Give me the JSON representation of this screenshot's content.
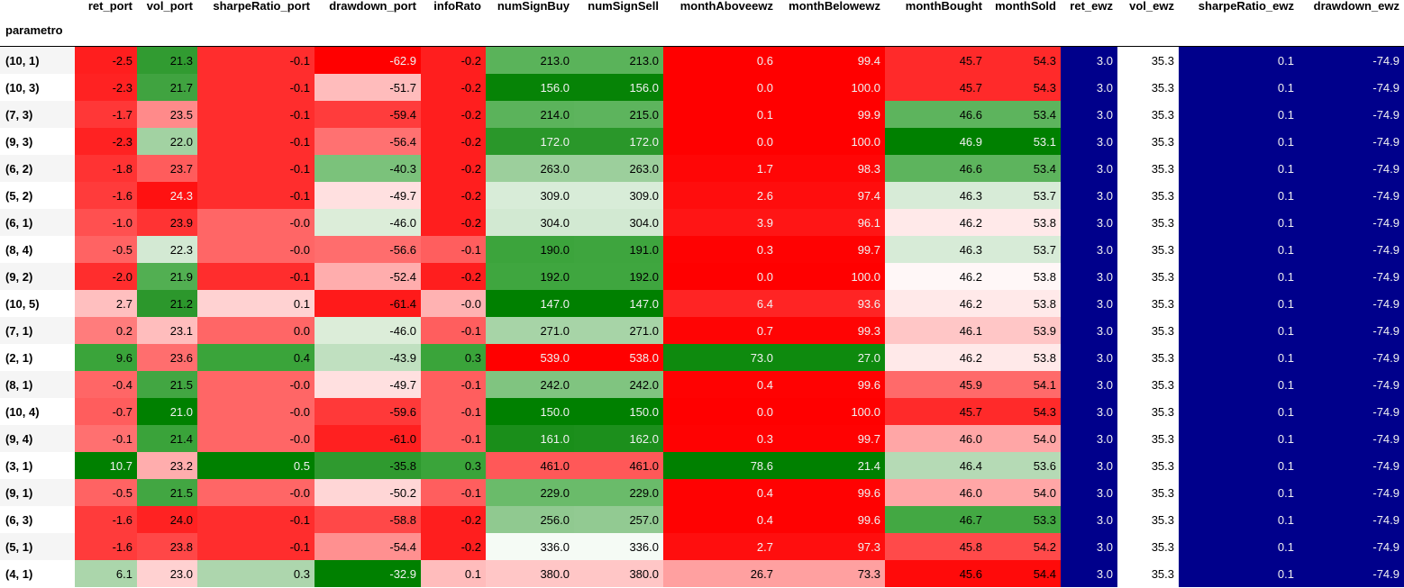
{
  "index_name": "parametro",
  "columns": [
    "ret_port",
    "vol_port",
    "sharpeRatio_port",
    "drawdown_port",
    "infoRato",
    "numSignBuy",
    "numSignSell",
    "monthAboveewz",
    "monthBelowewz",
    "monthBought",
    "monthSold",
    "ret_ewz",
    "vol_ewz",
    "sharpeRatio_ewz",
    "drawdown_ewz"
  ],
  "rows": [
    {
      "index": "(10, 1)",
      "values": [
        "-2.5",
        "21.3",
        "-0.1",
        "-62.9",
        "-0.2",
        "213.0",
        "213.0",
        "0.6",
        "99.4",
        "45.7",
        "54.3",
        "3.0",
        "35.3",
        "0.1",
        "-74.9"
      ],
      "bg": [
        "#ff1e1e",
        "#319b31",
        "#ff2d2d",
        "#ff0000",
        "#ff1e1e",
        "#5ab35a",
        "#5ab35a",
        "#ff0000",
        "#ff0000",
        "#ff2a2a",
        "#ff2a2a",
        "#00008b",
        "#ffffff",
        "#00008b",
        "#00008b"
      ],
      "fg": [
        "#000000",
        "#000000",
        "#000000",
        "#f1f1f1",
        "#000000",
        "#000000",
        "#000000",
        "#f1f1f1",
        "#f1f1f1",
        "#000000",
        "#000000",
        "#f1f1f1",
        "#000000",
        "#f1f1f1",
        "#f1f1f1"
      ]
    },
    {
      "index": "(10, 3)",
      "values": [
        "-2.3",
        "21.7",
        "-0.1",
        "-51.7",
        "-0.2",
        "156.0",
        "156.0",
        "0.0",
        "100.0",
        "45.7",
        "54.3",
        "3.0",
        "35.3",
        "0.1",
        "-74.9"
      ],
      "bg": [
        "#ff2222",
        "#40a340",
        "#ff2d2d",
        "#ffbcbc",
        "#ff1e1e",
        "#068306",
        "#068306",
        "#ff0000",
        "#ff0000",
        "#ff2a2a",
        "#ff2a2a",
        "#00008b",
        "#ffffff",
        "#00008b",
        "#00008b"
      ],
      "fg": [
        "#000000",
        "#000000",
        "#000000",
        "#000000",
        "#000000",
        "#f1f1f1",
        "#f1f1f1",
        "#f1f1f1",
        "#f1f1f1",
        "#000000",
        "#000000",
        "#f1f1f1",
        "#000000",
        "#f1f1f1",
        "#f1f1f1"
      ]
    },
    {
      "index": "(7, 3)",
      "values": [
        "-1.7",
        "23.5",
        "-0.1",
        "-59.4",
        "-0.2",
        "214.0",
        "215.0",
        "0.1",
        "99.9",
        "46.6",
        "53.4",
        "3.0",
        "35.3",
        "0.1",
        "-74.9"
      ],
      "bg": [
        "#ff3737",
        "#ff8a8a",
        "#ff2d2d",
        "#ff3c3c",
        "#ff1e1e",
        "#5bb35b",
        "#5db45d",
        "#ff0000",
        "#ff0000",
        "#5db45d",
        "#5db45d",
        "#00008b",
        "#ffffff",
        "#00008b",
        "#00008b"
      ],
      "fg": [
        "#000000",
        "#000000",
        "#000000",
        "#000000",
        "#000000",
        "#000000",
        "#000000",
        "#f1f1f1",
        "#f1f1f1",
        "#000000",
        "#000000",
        "#f1f1f1",
        "#000000",
        "#f1f1f1",
        "#f1f1f1"
      ]
    },
    {
      "index": "(9, 3)",
      "values": [
        "-2.3",
        "22.0",
        "-0.1",
        "-56.4",
        "-0.2",
        "172.0",
        "172.0",
        "0.0",
        "100.0",
        "46.9",
        "53.1",
        "3.0",
        "35.3",
        "0.1",
        "-74.9"
      ],
      "bg": [
        "#ff2222",
        "#a2d2a2",
        "#ff2d2d",
        "#ff7171",
        "#ff1e1e",
        "#2a972a",
        "#2a972a",
        "#ff0000",
        "#ff0000",
        "#008000",
        "#008000",
        "#00008b",
        "#ffffff",
        "#00008b",
        "#00008b"
      ],
      "fg": [
        "#000000",
        "#000000",
        "#000000",
        "#000000",
        "#000000",
        "#f1f1f1",
        "#f1f1f1",
        "#f1f1f1",
        "#f1f1f1",
        "#f1f1f1",
        "#f1f1f1",
        "#f1f1f1",
        "#000000",
        "#f1f1f1",
        "#f1f1f1"
      ]
    },
    {
      "index": "(6, 2)",
      "values": [
        "-1.8",
        "23.7",
        "-0.1",
        "-40.3",
        "-0.2",
        "263.0",
        "263.0",
        "1.7",
        "98.3",
        "46.6",
        "53.4",
        "3.0",
        "35.3",
        "0.1",
        "-74.9"
      ],
      "bg": [
        "#ff3333",
        "#ff5c5c",
        "#ff2d2d",
        "#7bc27b",
        "#ff1e1e",
        "#9ccf9c",
        "#9ccf9c",
        "#ff0606",
        "#ff0606",
        "#5db45d",
        "#5db45d",
        "#00008b",
        "#ffffff",
        "#00008b",
        "#00008b"
      ],
      "fg": [
        "#000000",
        "#000000",
        "#000000",
        "#000000",
        "#000000",
        "#000000",
        "#000000",
        "#f1f1f1",
        "#f1f1f1",
        "#000000",
        "#000000",
        "#f1f1f1",
        "#000000",
        "#f1f1f1",
        "#f1f1f1"
      ]
    },
    {
      "index": "(5, 2)",
      "values": [
        "-1.6",
        "24.3",
        "-0.1",
        "-49.7",
        "-0.2",
        "309.0",
        "309.0",
        "2.6",
        "97.4",
        "46.3",
        "53.7",
        "3.0",
        "35.3",
        "0.1",
        "-74.9"
      ],
      "bg": [
        "#ff3b3b",
        "#ff1111",
        "#ff2d2d",
        "#ffe0e0",
        "#ff1e1e",
        "#d8ecd8",
        "#d8ecd8",
        "#ff0d0d",
        "#ff0d0d",
        "#d7ebd7",
        "#d7ebd7",
        "#00008b",
        "#ffffff",
        "#00008b",
        "#00008b"
      ],
      "fg": [
        "#000000",
        "#f1f1f1",
        "#000000",
        "#000000",
        "#000000",
        "#000000",
        "#000000",
        "#f1f1f1",
        "#f1f1f1",
        "#000000",
        "#000000",
        "#f1f1f1",
        "#000000",
        "#f1f1f1",
        "#f1f1f1"
      ]
    },
    {
      "index": "(6, 1)",
      "values": [
        "-1.0",
        "23.9",
        "-0.0",
        "-46.0",
        "-0.2",
        "304.0",
        "304.0",
        "3.9",
        "96.1",
        "46.2",
        "53.8",
        "3.0",
        "35.3",
        "0.1",
        "-74.9"
      ],
      "bg": [
        "#ff5050",
        "#ff3333",
        "#ff6666",
        "#dcedd9",
        "#ff1e1e",
        "#d2e9d2",
        "#d2e9d2",
        "#ff1515",
        "#ff1515",
        "#ffe9e9",
        "#ffe9e9",
        "#00008b",
        "#ffffff",
        "#00008b",
        "#00008b"
      ],
      "fg": [
        "#000000",
        "#000000",
        "#000000",
        "#000000",
        "#000000",
        "#000000",
        "#000000",
        "#f1f1f1",
        "#f1f1f1",
        "#000000",
        "#000000",
        "#f1f1f1",
        "#000000",
        "#f1f1f1",
        "#f1f1f1"
      ]
    },
    {
      "index": "(8, 4)",
      "values": [
        "-0.5",
        "22.3",
        "-0.0",
        "-56.6",
        "-0.1",
        "190.0",
        "191.0",
        "0.3",
        "99.7",
        "46.3",
        "53.7",
        "3.0",
        "35.3",
        "0.1",
        "-74.9"
      ],
      "bg": [
        "#ff6363",
        "#d3e9d3",
        "#ff6666",
        "#ff6d6d",
        "#ff5e5e",
        "#3ca43c",
        "#3ea53e",
        "#ff0202",
        "#ff0202",
        "#d7ebd7",
        "#d7ebd7",
        "#00008b",
        "#ffffff",
        "#00008b",
        "#00008b"
      ],
      "fg": [
        "#000000",
        "#000000",
        "#000000",
        "#000000",
        "#000000",
        "#000000",
        "#000000",
        "#f1f1f1",
        "#f1f1f1",
        "#000000",
        "#000000",
        "#f1f1f1",
        "#000000",
        "#f1f1f1",
        "#f1f1f1"
      ]
    },
    {
      "index": "(9, 2)",
      "values": [
        "-2.0",
        "21.9",
        "-0.1",
        "-52.4",
        "-0.2",
        "192.0",
        "192.0",
        "0.0",
        "100.0",
        "46.2",
        "53.8",
        "3.0",
        "35.3",
        "0.1",
        "-74.9"
      ],
      "bg": [
        "#ff2d2d",
        "#52af52",
        "#ff2d2d",
        "#ffadad",
        "#ff1e1e",
        "#3fa63f",
        "#3fa63f",
        "#ff0000",
        "#ff0000",
        "#fff7f7",
        "#fff7f7",
        "#00008b",
        "#ffffff",
        "#00008b",
        "#00008b"
      ],
      "fg": [
        "#000000",
        "#000000",
        "#000000",
        "#000000",
        "#000000",
        "#000000",
        "#000000",
        "#f1f1f1",
        "#f1f1f1",
        "#000000",
        "#000000",
        "#f1f1f1",
        "#000000",
        "#f1f1f1",
        "#f1f1f1"
      ]
    },
    {
      "index": "(10, 5)",
      "values": [
        "2.7",
        "21.2",
        "0.1",
        "-61.4",
        "-0.0",
        "147.0",
        "147.0",
        "6.4",
        "93.6",
        "46.2",
        "53.8",
        "3.0",
        "35.3",
        "0.1",
        "-74.9"
      ],
      "bg": [
        "#ffbfbf",
        "#2c972c",
        "#ffd2d2",
        "#ff1a1a",
        "#ffb2b2",
        "#008000",
        "#008000",
        "#ff2424",
        "#ff2424",
        "#ffe9e9",
        "#ffe9e9",
        "#00008b",
        "#ffffff",
        "#00008b",
        "#00008b"
      ],
      "fg": [
        "#000000",
        "#000000",
        "#000000",
        "#000000",
        "#000000",
        "#f1f1f1",
        "#f1f1f1",
        "#f1f1f1",
        "#f1f1f1",
        "#000000",
        "#000000",
        "#f1f1f1",
        "#000000",
        "#f1f1f1",
        "#f1f1f1"
      ]
    },
    {
      "index": "(7, 1)",
      "values": [
        "0.2",
        "23.1",
        "0.0",
        "-46.0",
        "-0.1",
        "271.0",
        "271.0",
        "0.7",
        "99.3",
        "46.1",
        "53.9",
        "3.0",
        "35.3",
        "0.1",
        "-74.9"
      ],
      "bg": [
        "#ff7c7c",
        "#ffbdbd",
        "#ff6666",
        "#dcedd9",
        "#ff5e5e",
        "#a7d4a7",
        "#a7d4a7",
        "#ff0404",
        "#ff0404",
        "#ffc6c6",
        "#ffc6c6",
        "#00008b",
        "#ffffff",
        "#00008b",
        "#00008b"
      ],
      "fg": [
        "#000000",
        "#000000",
        "#000000",
        "#000000",
        "#000000",
        "#000000",
        "#000000",
        "#f1f1f1",
        "#f1f1f1",
        "#000000",
        "#000000",
        "#f1f1f1",
        "#000000",
        "#f1f1f1",
        "#f1f1f1"
      ]
    },
    {
      "index": "(2, 1)",
      "values": [
        "9.6",
        "23.6",
        "0.4",
        "-43.9",
        "0.3",
        "539.0",
        "538.0",
        "73.0",
        "27.0",
        "46.2",
        "53.8",
        "3.0",
        "35.3",
        "0.1",
        "-74.9"
      ],
      "bg": [
        "#3aa43a",
        "#ff6e6e",
        "#3aa43a",
        "#c0e0c0",
        "#3aa43a",
        "#ff0000",
        "#ff0000",
        "#0e8a0e",
        "#0e8a0e",
        "#ffe9e9",
        "#ffe9e9",
        "#00008b",
        "#ffffff",
        "#00008b",
        "#00008b"
      ],
      "fg": [
        "#000000",
        "#000000",
        "#000000",
        "#000000",
        "#000000",
        "#f1f1f1",
        "#f1f1f1",
        "#f1f1f1",
        "#f1f1f1",
        "#000000",
        "#000000",
        "#f1f1f1",
        "#000000",
        "#f1f1f1",
        "#f1f1f1"
      ]
    },
    {
      "index": "(8, 1)",
      "values": [
        "-0.4",
        "21.5",
        "-0.0",
        "-49.7",
        "-0.1",
        "242.0",
        "242.0",
        "0.4",
        "99.6",
        "45.9",
        "54.1",
        "3.0",
        "35.3",
        "0.1",
        "-74.9"
      ],
      "bg": [
        "#ff6666",
        "#42a642",
        "#ff6666",
        "#ffe0e0",
        "#ff5e5e",
        "#80c480",
        "#80c480",
        "#ff0202",
        "#ff0202",
        "#ff6a6a",
        "#ff6a6a",
        "#00008b",
        "#ffffff",
        "#00008b",
        "#00008b"
      ],
      "fg": [
        "#000000",
        "#000000",
        "#000000",
        "#000000",
        "#000000",
        "#000000",
        "#000000",
        "#f1f1f1",
        "#f1f1f1",
        "#000000",
        "#000000",
        "#f1f1f1",
        "#000000",
        "#f1f1f1",
        "#f1f1f1"
      ]
    },
    {
      "index": "(10, 4)",
      "values": [
        "-0.7",
        "21.0",
        "-0.0",
        "-59.6",
        "-0.1",
        "150.0",
        "150.0",
        "0.0",
        "100.0",
        "45.7",
        "54.3",
        "3.0",
        "35.3",
        "0.1",
        "-74.9"
      ],
      "bg": [
        "#ff5d5d",
        "#008000",
        "#ff6666",
        "#ff3939",
        "#ff5e5e",
        "#008000",
        "#008000",
        "#ff0000",
        "#ff0000",
        "#ff2a2a",
        "#ff2a2a",
        "#00008b",
        "#ffffff",
        "#00008b",
        "#00008b"
      ],
      "fg": [
        "#000000",
        "#f1f1f1",
        "#000000",
        "#000000",
        "#000000",
        "#f1f1f1",
        "#f1f1f1",
        "#f1f1f1",
        "#f1f1f1",
        "#000000",
        "#000000",
        "#f1f1f1",
        "#000000",
        "#f1f1f1",
        "#f1f1f1"
      ]
    },
    {
      "index": "(9, 4)",
      "values": [
        "-0.1",
        "21.4",
        "-0.0",
        "-61.0",
        "-0.1",
        "161.0",
        "162.0",
        "0.3",
        "99.7",
        "46.0",
        "54.0",
        "3.0",
        "35.3",
        "0.1",
        "-74.9"
      ],
      "bg": [
        "#ff7070",
        "#3aa33a",
        "#ff6666",
        "#ff2020",
        "#ff5e5e",
        "#1a8e1a",
        "#1c8f1c",
        "#ff0202",
        "#ff0202",
        "#ffa6a6",
        "#ffa6a6",
        "#00008b",
        "#ffffff",
        "#00008b",
        "#00008b"
      ],
      "fg": [
        "#000000",
        "#000000",
        "#000000",
        "#000000",
        "#000000",
        "#f1f1f1",
        "#f1f1f1",
        "#f1f1f1",
        "#f1f1f1",
        "#000000",
        "#000000",
        "#f1f1f1",
        "#000000",
        "#f1f1f1",
        "#f1f1f1"
      ]
    },
    {
      "index": "(3, 1)",
      "values": [
        "10.7",
        "23.2",
        "0.5",
        "-35.8",
        "0.3",
        "461.0",
        "461.0",
        "78.6",
        "21.4",
        "46.4",
        "53.6",
        "3.0",
        "35.3",
        "0.1",
        "-74.9"
      ],
      "bg": [
        "#008000",
        "#ffadad",
        "#008000",
        "#2f9a2f",
        "#3aa43a",
        "#ff5858",
        "#ff5858",
        "#008000",
        "#008000",
        "#b5dab5",
        "#b5dab5",
        "#00008b",
        "#ffffff",
        "#00008b",
        "#00008b"
      ],
      "fg": [
        "#f1f1f1",
        "#000000",
        "#f1f1f1",
        "#000000",
        "#000000",
        "#000000",
        "#000000",
        "#f1f1f1",
        "#f1f1f1",
        "#000000",
        "#000000",
        "#f1f1f1",
        "#000000",
        "#f1f1f1",
        "#f1f1f1"
      ]
    },
    {
      "index": "(9, 1)",
      "values": [
        "-0.5",
        "21.5",
        "-0.0",
        "-50.2",
        "-0.1",
        "229.0",
        "229.0",
        "0.4",
        "99.6",
        "46.0",
        "54.0",
        "3.0",
        "35.3",
        "0.1",
        "-74.9"
      ],
      "bg": [
        "#ff6363",
        "#42a642",
        "#ff6666",
        "#ffd6d6",
        "#ff5e5e",
        "#6abb6a",
        "#6abb6a",
        "#ff0202",
        "#ff0202",
        "#ffa6a6",
        "#ffa6a6",
        "#00008b",
        "#ffffff",
        "#00008b",
        "#00008b"
      ],
      "fg": [
        "#000000",
        "#000000",
        "#000000",
        "#000000",
        "#000000",
        "#000000",
        "#000000",
        "#f1f1f1",
        "#f1f1f1",
        "#000000",
        "#000000",
        "#f1f1f1",
        "#000000",
        "#f1f1f1",
        "#f1f1f1"
      ]
    },
    {
      "index": "(6, 3)",
      "values": [
        "-1.6",
        "24.0",
        "-0.1",
        "-58.8",
        "-0.2",
        "256.0",
        "257.0",
        "0.4",
        "99.6",
        "46.7",
        "53.3",
        "3.0",
        "35.3",
        "0.1",
        "-74.9"
      ],
      "bg": [
        "#ff3b3b",
        "#ff2222",
        "#ff2d2d",
        "#ff4848",
        "#ff1e1e",
        "#90c990",
        "#92ca92",
        "#ff0202",
        "#ff0202",
        "#43a843",
        "#43a843",
        "#00008b",
        "#ffffff",
        "#00008b",
        "#00008b"
      ],
      "fg": [
        "#000000",
        "#000000",
        "#000000",
        "#000000",
        "#000000",
        "#000000",
        "#000000",
        "#f1f1f1",
        "#f1f1f1",
        "#000000",
        "#000000",
        "#f1f1f1",
        "#000000",
        "#f1f1f1",
        "#f1f1f1"
      ]
    },
    {
      "index": "(5, 1)",
      "values": [
        "-1.6",
        "23.8",
        "-0.1",
        "-54.4",
        "-0.2",
        "336.0",
        "336.0",
        "2.7",
        "97.3",
        "45.8",
        "54.2",
        "3.0",
        "35.3",
        "0.1",
        "-74.9"
      ],
      "bg": [
        "#ff3b3b",
        "#ff4747",
        "#ff2d2d",
        "#ff9090",
        "#ff1e1e",
        "#f5fbf5",
        "#f5fbf5",
        "#ff0e0e",
        "#ff0e0e",
        "#ff4a4a",
        "#ff4a4a",
        "#00008b",
        "#ffffff",
        "#00008b",
        "#00008b"
      ],
      "fg": [
        "#000000",
        "#000000",
        "#000000",
        "#000000",
        "#000000",
        "#000000",
        "#000000",
        "#f1f1f1",
        "#f1f1f1",
        "#000000",
        "#000000",
        "#f1f1f1",
        "#000000",
        "#f1f1f1",
        "#f1f1f1"
      ]
    },
    {
      "index": "(4, 1)",
      "values": [
        "6.1",
        "23.0",
        "0.3",
        "-32.9",
        "0.1",
        "380.0",
        "380.0",
        "26.7",
        "73.3",
        "45.6",
        "54.4",
        "3.0",
        "35.3",
        "0.1",
        "-74.9"
      ],
      "bg": [
        "#abd6ab",
        "#ffd1d1",
        "#add6ad",
        "#008000",
        "#ffbcbc",
        "#ffc6c6",
        "#ffc6c6",
        "#ffa0a0",
        "#ffa0a0",
        "#ff0a0a",
        "#ff0a0a",
        "#00008b",
        "#ffffff",
        "#00008b",
        "#00008b"
      ],
      "fg": [
        "#000000",
        "#000000",
        "#000000",
        "#f1f1f1",
        "#000000",
        "#000000",
        "#000000",
        "#000000",
        "#000000",
        "#000000",
        "#000000",
        "#f1f1f1",
        "#000000",
        "#f1f1f1",
        "#f1f1f1"
      ]
    }
  ]
}
